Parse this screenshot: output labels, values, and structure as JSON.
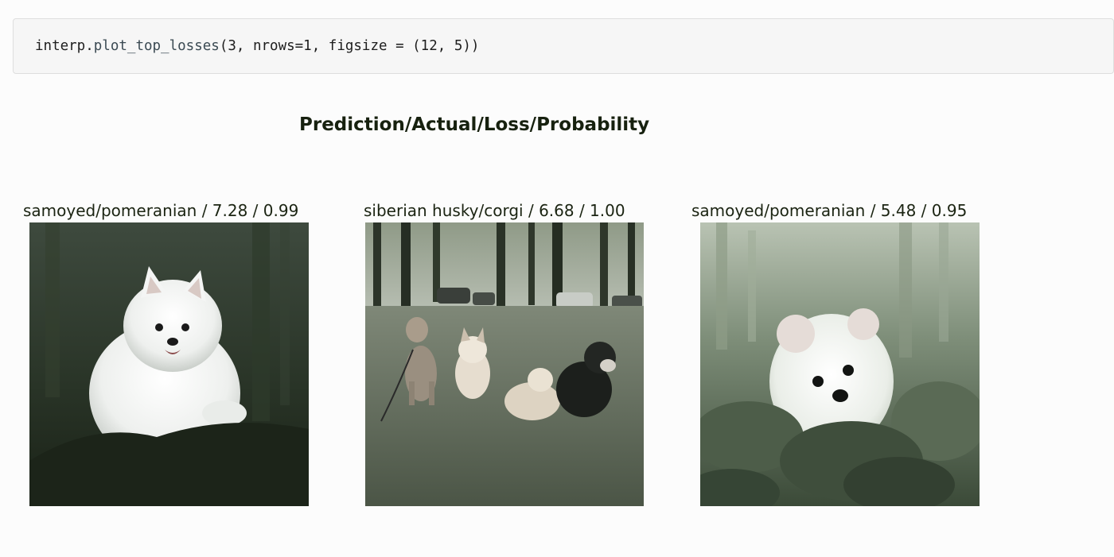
{
  "cell": {
    "code_var": "interp.",
    "code_fn": "plot_top_losses",
    "code_args": "(3, nrows=1, figsize = (12, 5))"
  },
  "figure": {
    "suptitle": "Prediction/Actual/Loss/Probability",
    "panels": [
      {
        "title": "samoyed/pomeranian / 7.28 / 0.99",
        "image_subject": "white fluffy dog lying in dark forest"
      },
      {
        "title": "siberian husky/corgi / 6.68 / 1.00",
        "image_subject": "four dogs sitting on grass in a park with trees and cars"
      },
      {
        "title": "samoyed/pomeranian / 5.48 / 0.95",
        "image_subject": "white pomeranian puppy among green leaves"
      }
    ]
  },
  "colors": {
    "background": "#fcfcfc",
    "code_cell_bg": "#f6f6f6",
    "text_dark": "#17210f"
  }
}
